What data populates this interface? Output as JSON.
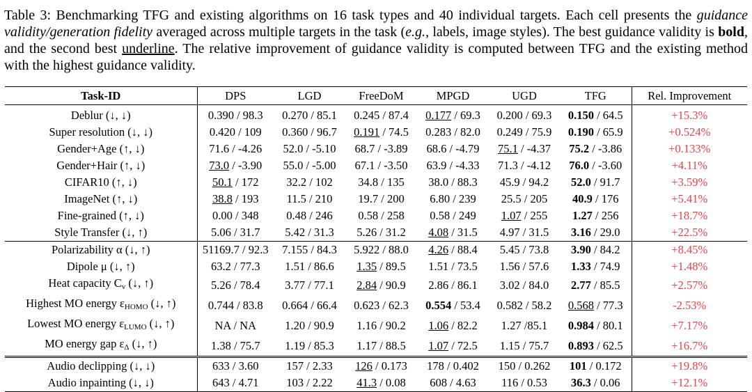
{
  "caption": {
    "label": "Table 3:",
    "seg1": " Benchmarking TFG and existing algorithms on 16 task types and 40 individual targets. Each cell presents the ",
    "italic1": "guidance validity/generation fidelity",
    "seg2": " averaged across multiple targets in the task (",
    "italic2": "e.g.",
    "seg3": ", labels, image styles). The best guidance validity is ",
    "bold_word": "bold",
    "seg4": ", and the second best ",
    "underline_word": "underline",
    "seg5": ". The relative improvement of guidance validity is computed between TFG and the existing method with the highest guidance validity."
  },
  "table": {
    "headers": [
      "Task-ID",
      "DPS",
      "LGD",
      "FreeDoM",
      "MPGD",
      "UGD",
      "TFG",
      "Rel. Improvement"
    ],
    "groups": [
      {
        "rows": [
          {
            "task": "Deblur (↓, ↓)",
            "cells": [
              {
                "v": "0.390",
                "f": "98.3"
              },
              {
                "v": "0.270",
                "f": "85.1"
              },
              {
                "v": "0.245",
                "f": "87.4"
              },
              {
                "v": "0.177",
                "f": "69.3",
                "m": "second"
              },
              {
                "v": "0.200",
                "f": "69.3"
              },
              {
                "v": "0.150",
                "f": "64.5",
                "m": "best"
              }
            ],
            "imp": "+15.3%"
          },
          {
            "task": "Super resolution (↓, ↓)",
            "cells": [
              {
                "v": "0.420",
                "f": "109"
              },
              {
                "v": "0.360",
                "f": "96.7"
              },
              {
                "v": "0.191",
                "f": "74.5",
                "m": "second"
              },
              {
                "v": "0.283",
                "f": "82.0"
              },
              {
                "v": "0.249",
                "f": "75.9"
              },
              {
                "v": "0.190",
                "f": "65.9",
                "m": "best"
              }
            ],
            "imp": "+0.524%"
          },
          {
            "task": "Gender+Age (↑, ↓)",
            "cells": [
              {
                "v": "71.6",
                "f": "-4.26"
              },
              {
                "v": "52.0",
                "f": "-5.10"
              },
              {
                "v": "68.7",
                "f": "-3.89"
              },
              {
                "v": "68.6",
                "f": "-4.79"
              },
              {
                "v": "75.1",
                "f": "-4.37",
                "m": "second"
              },
              {
                "v": "75.2",
                "f": "-3.86",
                "m": "best"
              }
            ],
            "imp": "+0.133%"
          },
          {
            "task": "Gender+Hair (↑, ↓)",
            "cells": [
              {
                "v": "73.0",
                "f": "-3.90",
                "m": "second"
              },
              {
                "v": "55.0",
                "f": "-5.00"
              },
              {
                "v": "67.1",
                "f": "-3.50"
              },
              {
                "v": "63.9",
                "f": "-4.33"
              },
              {
                "v": "71.3",
                "f": "-4.12"
              },
              {
                "v": "76.0",
                "f": "-3.60",
                "m": "best"
              }
            ],
            "imp": "+4.11%"
          },
          {
            "task": "CIFAR10 (↑, ↓)",
            "cells": [
              {
                "v": "50.1",
                "f": "172",
                "m": "second"
              },
              {
                "v": "32.2",
                "f": "102"
              },
              {
                "v": "34.8",
                "f": "135"
              },
              {
                "v": "38.0",
                "f": "88.3"
              },
              {
                "v": "45.9",
                "f": "94.2"
              },
              {
                "v": "52.0",
                "f": "91.7",
                "m": "best"
              }
            ],
            "imp": "+3.59%"
          },
          {
            "task": "ImageNet (↑, ↓)",
            "cells": [
              {
                "v": "38.8",
                "f": "193",
                "m": "second"
              },
              {
                "v": "11.5",
                "f": "210"
              },
              {
                "v": "19.7",
                "f": "200"
              },
              {
                "v": "6.80",
                "f": "239"
              },
              {
                "v": "25.5",
                "f": "205"
              },
              {
                "v": "40.9",
                "f": "176",
                "m": "best"
              }
            ],
            "imp": "+5.41%"
          },
          {
            "task": "Fine-grained (↑, ↓)",
            "cells": [
              {
                "v": "0.00",
                "f": "348"
              },
              {
                "v": "0.48",
                "f": "246"
              },
              {
                "v": "0.58",
                "f": "258"
              },
              {
                "v": "0.58",
                "f": "249"
              },
              {
                "v": "1.07",
                "f": "255",
                "m": "second"
              },
              {
                "v": "1.27",
                "f": "256",
                "m": "best"
              }
            ],
            "imp": "+18.7%"
          },
          {
            "task": "Style Transfer (↓, ↑)",
            "cells": [
              {
                "v": "5.06",
                "f": "31.7"
              },
              {
                "v": "5.42",
                "f": "31.3"
              },
              {
                "v": "5.26",
                "f": "31.2"
              },
              {
                "v": "4.08",
                "f": "31.5",
                "m": "second"
              },
              {
                "v": "4.97",
                "f": "31.5"
              },
              {
                "v": "3.16",
                "f": "29.0",
                "m": "best"
              }
            ],
            "imp": "+22.5%"
          }
        ]
      },
      {
        "rows": [
          {
            "task": "Polarizability α (↓, ↑)",
            "cells": [
              {
                "v": "51169.7",
                "f": "92.3"
              },
              {
                "v": "7.155",
                "f": "84.3"
              },
              {
                "v": "5.922",
                "f": "88.0"
              },
              {
                "v": "4.26",
                "f": "88.4",
                "m": "second"
              },
              {
                "v": "5.45",
                "f": "73.8"
              },
              {
                "v": "3.90",
                "f": "84.2",
                "m": "best"
              }
            ],
            "imp": "+8.45%"
          },
          {
            "task": "Dipole μ (↓, ↑)",
            "cells": [
              {
                "v": "63.2",
                "f": "77.3"
              },
              {
                "v": "1.51",
                "f": "86.6"
              },
              {
                "v": "1.35",
                "f": "89.5",
                "m": "second"
              },
              {
                "v": "1.51",
                "f": "73.5"
              },
              {
                "v": "1.56",
                "f": "57.6"
              },
              {
                "v": "1.33",
                "f": "74.9",
                "m": "best"
              }
            ],
            "imp": "+1.48%"
          },
          {
            "task": "Heat capacity Cv (↓, ↑)",
            "cells": [
              {
                "v": "5.26",
                "f": "78.4"
              },
              {
                "v": "3.77",
                "f": "77.1"
              },
              {
                "v": "2.84",
                "f": "90.9",
                "m": "second"
              },
              {
                "v": "2.86",
                "f": "86.1"
              },
              {
                "v": "3.02",
                "f": "84.0"
              },
              {
                "v": "2.77",
                "f": "85.5",
                "m": "best"
              }
            ],
            "imp": "+2.57%"
          },
          {
            "task": "Highest MO energy εHOMO (↓, ↑)",
            "cells": [
              {
                "v": "0.744",
                "f": "83.8"
              },
              {
                "v": "0.664",
                "f": "66.4"
              },
              {
                "v": "0.623",
                "f": "62.3"
              },
              {
                "v": "0.554",
                "f": "53.4",
                "m": "best"
              },
              {
                "v": "0.582",
                "f": "58.2"
              },
              {
                "v": "0.568",
                "f": "77.3",
                "m": "second"
              }
            ],
            "imp": "-2.53%"
          },
          {
            "task": "Lowest MO energy εLUMO (↓, ↑)",
            "cells": [
              {
                "v": "NA",
                "f": "NA"
              },
              {
                "v": "1.20",
                "f": "90.9"
              },
              {
                "v": "1.16",
                "f": "90.2"
              },
              {
                "v": "1.06",
                "f": "82.2",
                "m": "second"
              },
              {
                "v": "1.27",
                "f": "85.1",
                "sep": " /"
              },
              {
                "v": "0.984",
                "f": "80.1",
                "m": "best"
              }
            ],
            "imp": "+7.17%"
          },
          {
            "task": "MO energy gap εΔ (↓, ↑)",
            "cells": [
              {
                "v": "1.38",
                "f": "75.7"
              },
              {
                "v": "1.19",
                "f": "85.3"
              },
              {
                "v": "1.17",
                "f": "88.5"
              },
              {
                "v": "1.07",
                "f": "72.5",
                "m": "second"
              },
              {
                "v": "1.15",
                "f": "75.7"
              },
              {
                "v": "0.893",
                "f": "62.5",
                "m": "best"
              }
            ],
            "imp": "+16.7%"
          }
        ]
      },
      {
        "rows": [
          {
            "task": "Audio declipping (↓, ↓)",
            "cells": [
              {
                "v": "633",
                "f": "3.60"
              },
              {
                "v": "157",
                "f": "2.33"
              },
              {
                "v": "126",
                "f": "0.173",
                "m": "second"
              },
              {
                "v": "178",
                "f": "0.402"
              },
              {
                "v": "150",
                "f": "0.262"
              },
              {
                "v": "101",
                "f": "0.172",
                "m": "best"
              }
            ],
            "imp": "+19.8%"
          },
          {
            "task": "Audio inpainting (↓, ↓)",
            "cells": [
              {
                "v": "643",
                "f": "4.71"
              },
              {
                "v": "103",
                "f": "2.22"
              },
              {
                "v": "41.3",
                "f": "0.08",
                "m": "second"
              },
              {
                "v": "608",
                "f": "4.63"
              },
              {
                "v": "116",
                "f": "0.53"
              },
              {
                "v": "36.3",
                "f": "0.06",
                "m": "best"
              }
            ],
            "imp": "+12.1%"
          }
        ]
      }
    ]
  },
  "colors": {
    "improvement_text": "#e8414a"
  }
}
